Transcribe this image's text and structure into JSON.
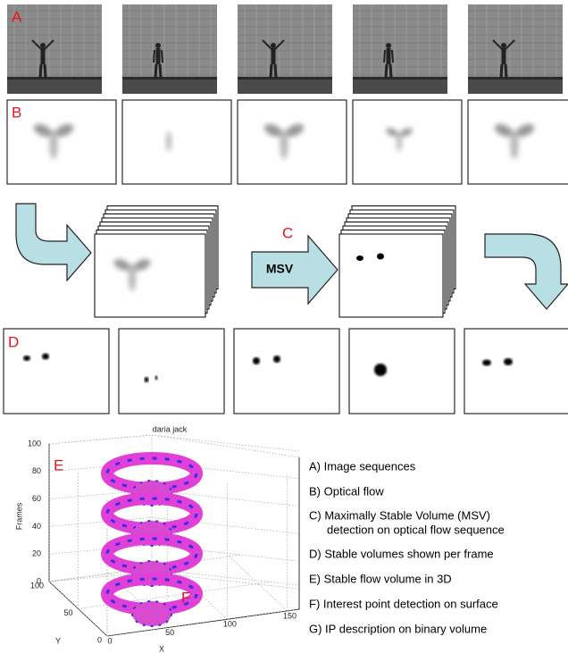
{
  "panel_labels": {
    "a": "A",
    "b": "B",
    "c": "C",
    "d": "D",
    "e": "E",
    "f": "F"
  },
  "msv_arrow": "MSV",
  "plot": {
    "title": "daria jack",
    "zlabel": "Frames",
    "zticks": [
      0,
      20,
      40,
      60,
      80,
      100
    ],
    "ylabel": "Y",
    "yticks": [
      0,
      50,
      100
    ],
    "xlabel": "X",
    "xticks": [
      0,
      50,
      100,
      150
    ]
  },
  "legend": [
    [
      "A) Image sequences"
    ],
    [
      "B) Optical flow"
    ],
    [
      "C) Maximally Stable Volume (MSV)",
      "detection on optical flow sequence"
    ],
    [
      "D) Stable volumes shown per frame"
    ],
    [
      "E) Stable flow volume in 3D"
    ],
    [
      "F) Interest point detection on surface"
    ],
    [
      "G) IP description on binary volume"
    ]
  ]
}
